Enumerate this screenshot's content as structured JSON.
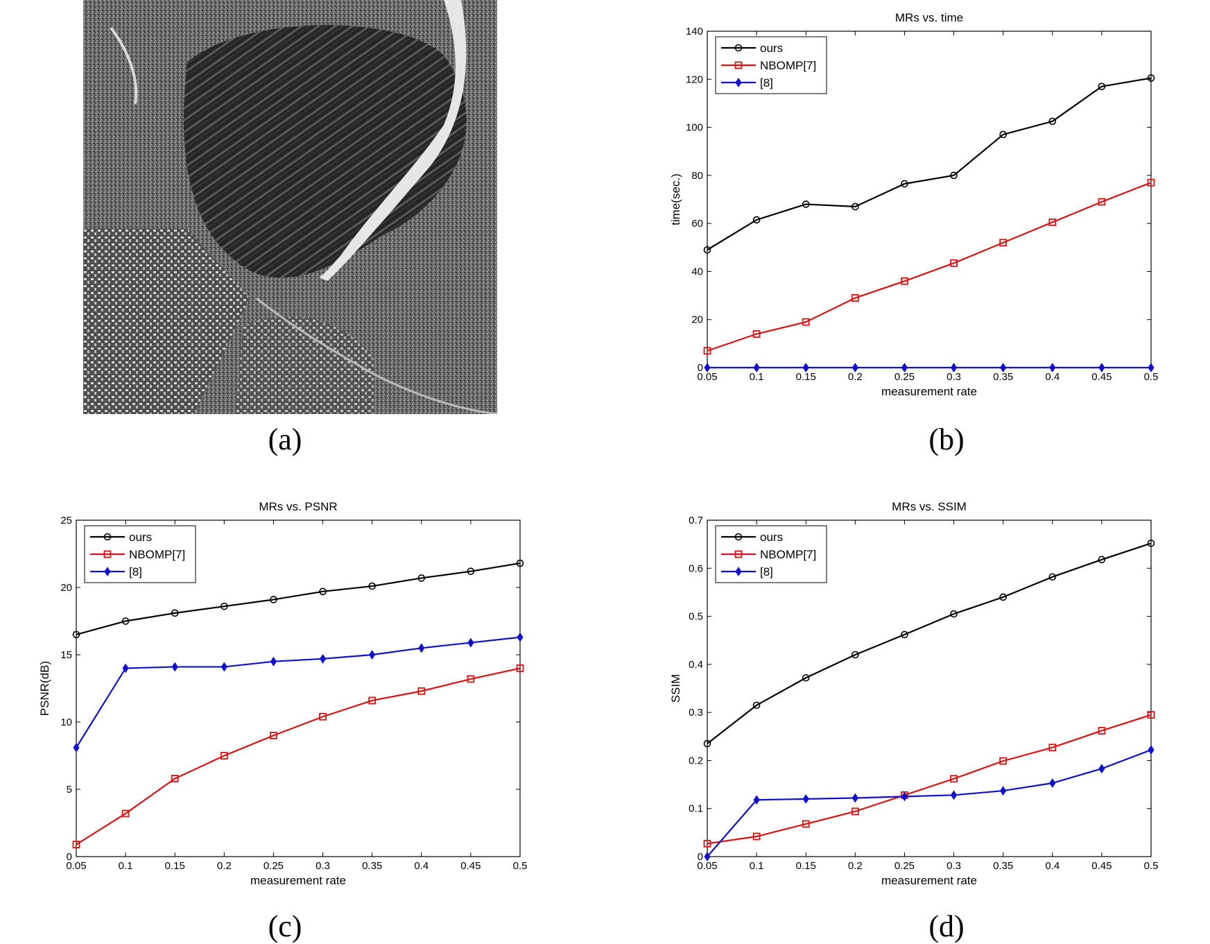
{
  "panel_labels": {
    "a": "(a)",
    "b": "(b)",
    "c": "(c)",
    "d": "(d)"
  },
  "colors": {
    "ours": "#000000",
    "nbomp": "#dd1010",
    "ref8": "#1010cc",
    "frame": "#000000",
    "background": "#ffffff"
  },
  "chart_data": [
    {
      "id": "b",
      "type": "line",
      "title": "MRs  vs.  time",
      "xlabel": "measurement rate",
      "ylabel": "time(sec.)",
      "x": [
        0.05,
        0.1,
        0.15,
        0.2,
        0.25,
        0.3,
        0.35,
        0.4,
        0.45,
        0.5
      ],
      "xticks": [
        "0.05",
        "0.1",
        "0.15",
        "0.2",
        "0.25",
        "0.3",
        "0.35",
        "0.4",
        "0.45",
        "0.5"
      ],
      "xlim": [
        0.05,
        0.5
      ],
      "ylim": [
        0,
        140
      ],
      "yticks": [
        "0",
        "20",
        "40",
        "60",
        "80",
        "100",
        "120",
        "140"
      ],
      "legend_position": "top-left",
      "series": [
        {
          "name": "ours",
          "marker": "circle",
          "color": "#000000",
          "values": [
            49,
            61.5,
            68,
            67,
            76.5,
            80,
            97,
            102.5,
            117,
            120.5
          ]
        },
        {
          "name": "NBOMP[7]",
          "marker": "square",
          "color": "#dd1010",
          "values": [
            7,
            14,
            19,
            29,
            36,
            43.5,
            52,
            60.5,
            69,
            77
          ]
        },
        {
          "name": "[8]",
          "marker": "diamond",
          "color": "#1010cc",
          "values": [
            0,
            0,
            0,
            0,
            0,
            0,
            0,
            0,
            0,
            0
          ]
        }
      ]
    },
    {
      "id": "c",
      "type": "line",
      "title": "MRs  vs.  PSNR",
      "xlabel": "measurement rate",
      "ylabel": "PSNR(dB)",
      "x": [
        0.05,
        0.1,
        0.15,
        0.2,
        0.25,
        0.3,
        0.35,
        0.4,
        0.45,
        0.5
      ],
      "xticks": [
        "0.05",
        "0.1",
        "0.15",
        "0.2",
        "0.25",
        "0.3",
        "0.35",
        "0.4",
        "0.45",
        "0.5"
      ],
      "xlim": [
        0.05,
        0.5
      ],
      "ylim": [
        0,
        25
      ],
      "yticks": [
        "0",
        "5",
        "10",
        "15",
        "20",
        "25"
      ],
      "legend_position": "top-left",
      "series": [
        {
          "name": "ours",
          "marker": "circle",
          "color": "#000000",
          "values": [
            16.5,
            17.5,
            18.1,
            18.6,
            19.1,
            19.7,
            20.1,
            20.7,
            21.2,
            21.8
          ]
        },
        {
          "name": "NBOMP[7]",
          "marker": "square",
          "color": "#dd1010",
          "values": [
            0.9,
            3.2,
            5.8,
            7.5,
            9.0,
            10.4,
            11.6,
            12.3,
            13.2,
            14.0
          ]
        },
        {
          "name": "[8]",
          "marker": "diamond",
          "color": "#1010cc",
          "values": [
            8.1,
            14.0,
            14.1,
            14.1,
            14.5,
            14.7,
            15.0,
            15.5,
            15.9,
            16.3
          ]
        }
      ]
    },
    {
      "id": "d",
      "type": "line",
      "title": "MRs  vs.  SSIM",
      "xlabel": "measurement rate",
      "ylabel": "SSIM",
      "x": [
        0.05,
        0.1,
        0.15,
        0.2,
        0.25,
        0.3,
        0.35,
        0.4,
        0.45,
        0.5
      ],
      "xticks": [
        "0.05",
        "0.1",
        "0.15",
        "0.2",
        "0.25",
        "0.3",
        "0.35",
        "0.4",
        "0.45",
        "0.5"
      ],
      "xlim": [
        0.05,
        0.5
      ],
      "ylim": [
        0,
        0.7
      ],
      "yticks": [
        "0",
        "0.1",
        "0.2",
        "0.3",
        "0.4",
        "0.5",
        "0.6",
        "0.7"
      ],
      "legend_position": "top-left",
      "series": [
        {
          "name": "ours",
          "marker": "circle",
          "color": "#000000",
          "values": [
            0.235,
            0.315,
            0.372,
            0.42,
            0.462,
            0.505,
            0.54,
            0.582,
            0.618,
            0.652
          ]
        },
        {
          "name": "NBOMP[7]",
          "marker": "square",
          "color": "#dd1010",
          "values": [
            0.027,
            0.042,
            0.068,
            0.094,
            0.128,
            0.162,
            0.199,
            0.227,
            0.262,
            0.295
          ]
        },
        {
          "name": "[8]",
          "marker": "diamond",
          "color": "#1010cc",
          "values": [
            0.0,
            0.118,
            0.12,
            0.122,
            0.125,
            0.128,
            0.137,
            0.153,
            0.183,
            0.222
          ]
        }
      ]
    }
  ]
}
